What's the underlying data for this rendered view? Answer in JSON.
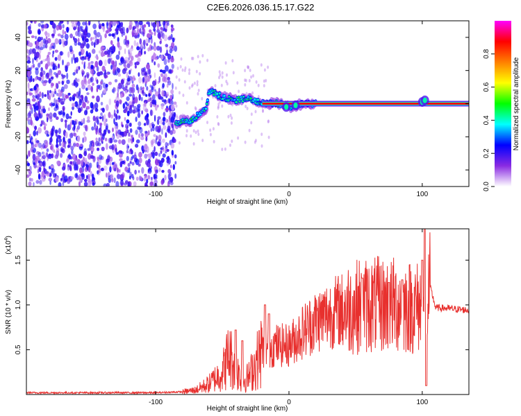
{
  "title": "C2E6.2026.036.15.17.G22",
  "chart_data": [
    {
      "type": "heatmap",
      "xlabel": "Height of straight line (km)",
      "ylabel": "Frequency (Hz)",
      "xlim": [
        -197,
        135
      ],
      "ylim": [
        -50,
        50
      ],
      "xticks": [
        -100,
        0,
        100
      ],
      "yticks": [
        -40,
        -20,
        0,
        20,
        40
      ],
      "xtick_labels": [
        "-100",
        "0",
        "100"
      ],
      "ytick_labels": [
        "-40",
        "-20",
        "0",
        "20",
        "40"
      ],
      "noise_region_x": [
        -197,
        -85
      ],
      "signal_ridge": {
        "x": [
          -85,
          -80,
          -75,
          -70,
          -65,
          -62,
          -60,
          -55,
          -50,
          -45,
          -40,
          -35,
          -30,
          -25,
          -20,
          -15,
          -10,
          -5,
          0,
          10,
          20,
          40,
          60,
          80,
          100,
          105,
          135
        ],
        "y": [
          -12,
          -10,
          -11,
          -8,
          -5,
          -4,
          8,
          6,
          4,
          3,
          2,
          3,
          3,
          1,
          1,
          0,
          0,
          0,
          -2,
          0,
          0,
          0,
          0,
          0,
          0,
          0,
          0
        ]
      },
      "colorbar": {
        "label": "Normalized spectral amplitude",
        "range": [
          0,
          1
        ],
        "ticks": [
          0.0,
          0.2,
          0.4,
          0.6,
          0.8
        ],
        "tick_labels": [
          "0.0",
          "0.2",
          "0.4",
          "0.6",
          "0.8"
        ],
        "colors": [
          "#ffffff",
          "#8a2be2",
          "#0000ff",
          "#00ffff",
          "#00ff00",
          "#ffff00",
          "#ff8000",
          "#ff0000",
          "#ff00ff"
        ]
      }
    },
    {
      "type": "line",
      "xlabel": "Height of straight line (km)",
      "ylabel": "SNR (10 * v/v)",
      "scale_label": "(x10",
      "scale_exponent": "4",
      "scale_close": ")",
      "xlim": [
        -197,
        135
      ],
      "ylim": [
        0,
        1.85
      ],
      "xticks": [
        -100,
        0,
        100
      ],
      "yticks": [
        0.5,
        1.0,
        1.5
      ],
      "xtick_labels": [
        "-100",
        "0",
        "100"
      ],
      "ytick_labels": [
        "0.5",
        "1.0",
        "1.5"
      ],
      "line_color": "#e8302e",
      "envelope": {
        "x": [
          -197,
          -100,
          -80,
          -70,
          -60,
          -50,
          -45,
          -40,
          -35,
          -30,
          -20,
          -10,
          0,
          10,
          20,
          30,
          40,
          50,
          60,
          70,
          80,
          90,
          100,
          104,
          106,
          110,
          120,
          135
        ],
        "y": [
          0.02,
          0.02,
          0.03,
          0.05,
          0.12,
          0.25,
          0.45,
          0.3,
          0.15,
          0.2,
          0.5,
          0.55,
          0.55,
          0.7,
          0.82,
          0.9,
          0.95,
          0.98,
          1.0,
          1.0,
          1.0,
          0.98,
          0.97,
          1.0,
          1.2,
          0.97,
          0.96,
          0.94
        ]
      },
      "spikes": [
        {
          "x": -40,
          "y": 0.72
        },
        {
          "x": -35,
          "y": 0.6
        },
        {
          "x": -18,
          "y": 1.0
        },
        {
          "x": -15,
          "y": 0.9
        },
        {
          "x": 55,
          "y": 1.3
        },
        {
          "x": 75,
          "y": 1.25
        },
        {
          "x": 85,
          "y": 1.28
        },
        {
          "x": 100,
          "y": 1.5
        },
        {
          "x": 102,
          "y": 1.85
        },
        {
          "x": 103,
          "y": 0.1
        }
      ]
    }
  ]
}
